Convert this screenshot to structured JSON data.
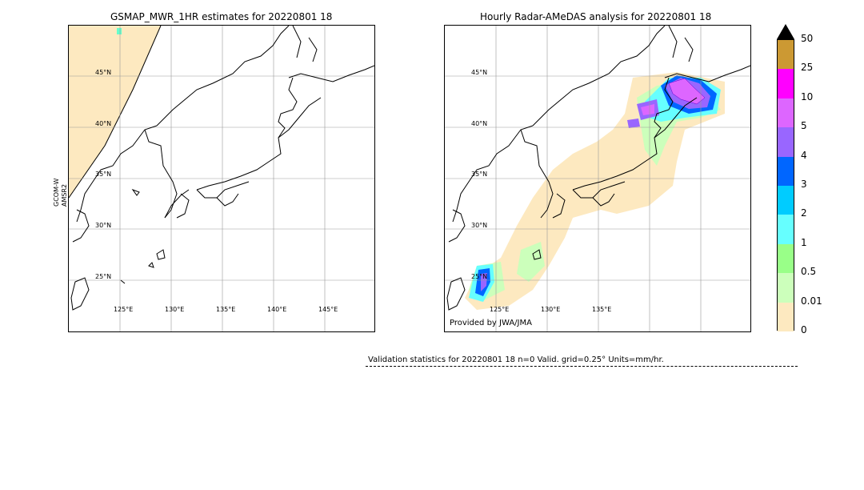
{
  "left_panel": {
    "title": "GSMAP_MWR_1HR estimates for 20220801 18",
    "satellite_label_1": "GCOM-W",
    "satellite_label_2": "AMSR2",
    "lat_labels": [
      "45°N",
      "40°N",
      "35°N",
      "30°N",
      "25°N"
    ],
    "lon_labels": [
      "125°E",
      "130°E",
      "135°E",
      "140°E",
      "145°E"
    ]
  },
  "right_panel": {
    "title": "Hourly Radar-AMeDAS analysis for 20220801 18",
    "lat_labels": [
      "45°N",
      "40°N",
      "35°N",
      "30°N",
      "25°N"
    ],
    "lon_labels": [
      "125°E",
      "130°E",
      "135°E"
    ],
    "provider": "Provided by JWA/JMA"
  },
  "colorbar": {
    "ticks": [
      "50",
      "25",
      "10",
      "5",
      "4",
      "3",
      "2",
      "1",
      "0.5",
      "0.01",
      "0"
    ],
    "colors": [
      "#cc9933",
      "#ff00ff",
      "#dd66ff",
      "#9966ff",
      "#0066ff",
      "#00ccff",
      "#66ffff",
      "#99ff88",
      "#ccffbb",
      "#fde9c0"
    ],
    "over_color": "#000000"
  },
  "validation": {
    "text": "Validation statistics for 20220801 18  n=0 Valid. grid=0.25° Units=mm/hr."
  }
}
